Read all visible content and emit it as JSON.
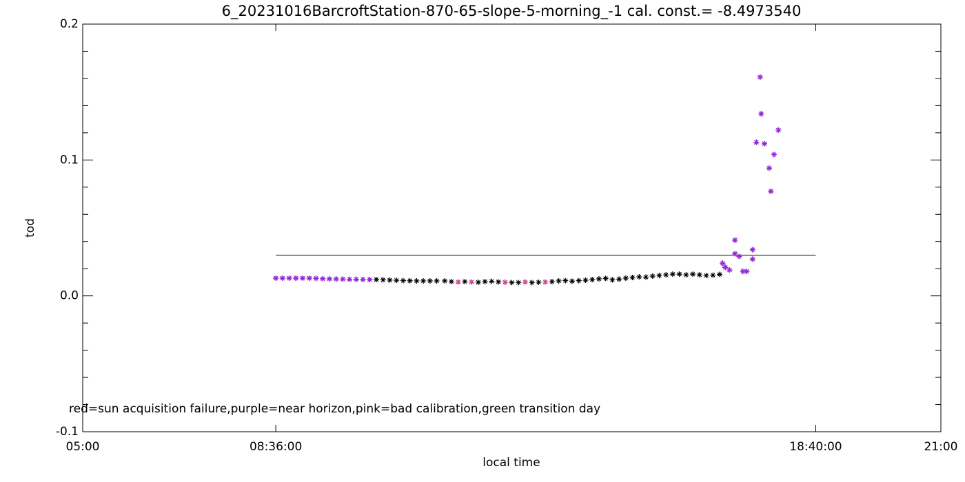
{
  "chart_data": {
    "type": "scatter",
    "title": "6_20231016BarcroftStation-870-65-slope-5-morning_-1 cal. const.= -8.4973540",
    "xlabel": "local time",
    "ylabel": "tod",
    "annotation": "red=sun acquisition failure,purple=near horizon,pink=bad calibration,green transition day",
    "xlim": [
      5,
      21
    ],
    "xticks": [
      {
        "value": 5,
        "label": "05:00"
      },
      {
        "value": 8.6,
        "label": "08:36:00"
      },
      {
        "value": 18.6667,
        "label": "18:40:00"
      },
      {
        "value": 21,
        "label": "21:00"
      }
    ],
    "ylim": [
      -0.1,
      0.2
    ],
    "yticks": [
      -0.1,
      {
        "value": 0,
        "label": "0.0"
      },
      0.1,
      0.2
    ],
    "yminorticks": [
      -0.08,
      -0.06,
      -0.04,
      -0.02,
      0.02,
      0.04,
      0.06,
      0.08,
      0.12,
      0.14,
      0.16,
      0.18
    ],
    "reference_line": {
      "y": 0.03,
      "x": [
        8.6,
        18.6667
      ],
      "color": "#000000"
    },
    "series": [
      {
        "color": "#000000",
        "x": [
          8.6,
          8.725,
          8.85,
          8.975,
          9.1,
          9.225,
          9.35,
          9.475,
          9.6,
          9.725,
          9.85,
          9.975,
          10.1,
          10.225,
          10.35,
          10.475,
          10.6,
          10.725,
          10.85,
          10.975,
          11.1,
          11.225,
          11.35,
          11.475,
          11.6,
          11.75,
          11.875,
          12.0,
          12.125,
          12.25,
          12.375,
          12.5,
          12.625,
          12.75,
          12.875,
          13.0,
          13.125,
          13.25,
          13.375,
          13.5,
          13.625,
          13.75,
          13.875,
          14.0,
          14.125,
          14.25,
          14.375,
          14.5,
          14.625,
          14.75,
          14.875,
          15.0,
          15.125,
          15.25,
          15.375,
          15.5,
          15.625,
          15.75,
          15.875,
          16.0,
          16.125,
          16.25,
          16.375,
          16.5,
          16.625,
          16.75,
          16.875,
          16.93,
          16.98,
          17.06,
          17.16,
          17.16,
          17.24,
          17.31,
          17.38,
          17.49,
          17.49,
          17.56,
          17.63,
          17.65,
          17.71,
          17.8,
          17.83,
          17.89,
          17.97
        ],
        "values": [
          0.013,
          0.013,
          0.013,
          0.013,
          0.013,
          0.013,
          0.0128,
          0.0126,
          0.0125,
          0.0124,
          0.0123,
          0.0122,
          0.0122,
          0.0121,
          0.012,
          0.012,
          0.0118,
          0.0116,
          0.0114,
          0.0112,
          0.0111,
          0.011,
          0.011,
          0.011,
          0.011,
          0.011,
          0.0105,
          0.0102,
          0.0105,
          0.0102,
          0.01,
          0.0105,
          0.0107,
          0.0103,
          0.01,
          0.0098,
          0.0098,
          0.0102,
          0.0098,
          0.01,
          0.0102,
          0.0105,
          0.011,
          0.0112,
          0.0108,
          0.0112,
          0.0115,
          0.012,
          0.0125,
          0.0128,
          0.0118,
          0.0123,
          0.013,
          0.0135,
          0.014,
          0.0138,
          0.0145,
          0.015,
          0.0155,
          0.016,
          0.016,
          0.0155,
          0.016,
          0.0155,
          0.015,
          0.0152,
          0.0158,
          0.024,
          0.021,
          0.019,
          0.041,
          0.031,
          0.029,
          0.018,
          0.018,
          0.034,
          0.027,
          0.113,
          0.161,
          0.134,
          0.112,
          0.094,
          0.077,
          0.104,
          0.122
        ]
      },
      {
        "color": "#a020f0",
        "x": [
          8.6,
          8.725,
          8.85,
          8.975,
          9.1,
          9.225,
          9.35,
          9.475,
          9.6,
          9.725,
          9.85,
          9.975,
          10.1,
          10.225,
          10.35,
          16.93,
          16.98,
          17.06,
          17.16,
          17.16,
          17.24,
          17.31,
          17.38,
          17.49,
          17.49,
          17.56,
          17.63,
          17.65,
          17.71,
          17.8,
          17.83,
          17.89,
          17.97
        ],
        "values": [
          0.013,
          0.013,
          0.013,
          0.013,
          0.013,
          0.013,
          0.0128,
          0.0126,
          0.0125,
          0.0124,
          0.0123,
          0.0122,
          0.0122,
          0.0121,
          0.012,
          0.024,
          0.021,
          0.019,
          0.041,
          0.031,
          0.029,
          0.018,
          0.018,
          0.034,
          0.027,
          0.113,
          0.161,
          0.134,
          0.112,
          0.094,
          0.077,
          0.104,
          0.122
        ]
      },
      {
        "color": "#e040a0",
        "x": [
          12.0,
          12.25,
          12.875,
          13.25,
          13.625
        ],
        "values": [
          0.0102,
          0.0102,
          0.01,
          0.0102,
          0.0102
        ]
      }
    ]
  }
}
